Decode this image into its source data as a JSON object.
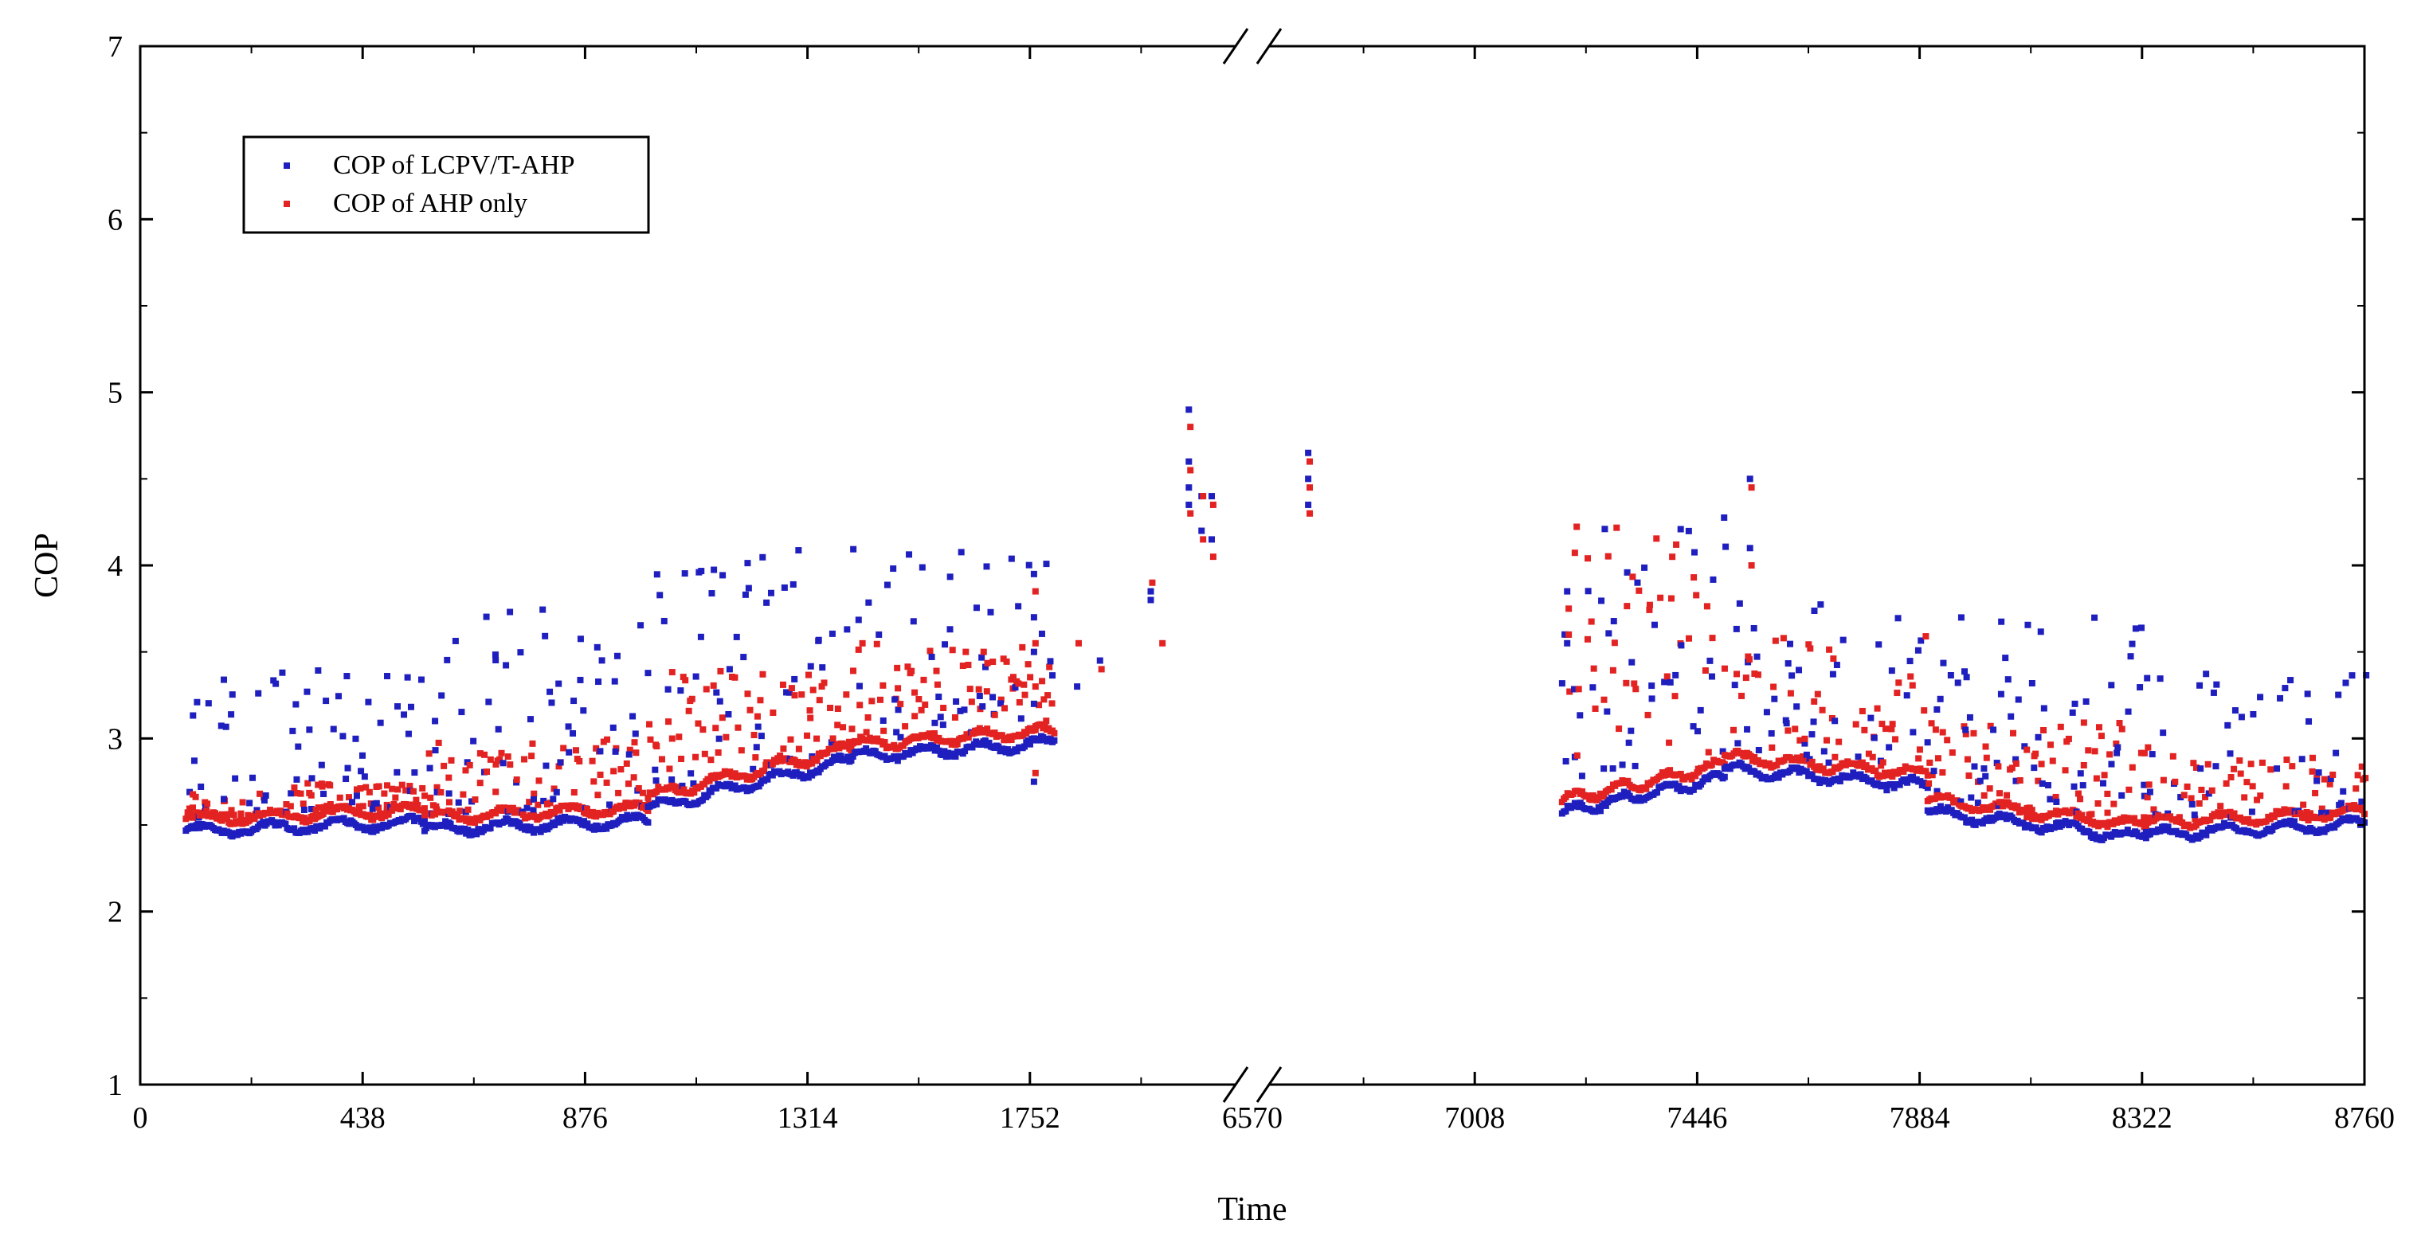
{
  "chart_data": {
    "type": "scatter",
    "title": "",
    "xlabel": "Time",
    "ylabel": "COP",
    "ylim": [
      1,
      7
    ],
    "y_ticks": [
      "1",
      "2",
      "3",
      "4",
      "5",
      "6",
      "7"
    ],
    "x_tick_labels": [
      "0",
      "438",
      "876",
      "1314",
      "1752",
      "6570",
      "7008",
      "7446",
      "7884",
      "8322",
      "8760"
    ],
    "x_axis_break": {
      "from": 2190,
      "to": 6570
    },
    "x_domain": [
      0,
      8760
    ],
    "legend": {
      "position": "top-left",
      "entries": [
        "COP of LCPV/T-AHP",
        "COP of AHP only"
      ]
    },
    "series": [
      {
        "name": "COP of LCPV/T-AHP",
        "color": "#1f1fbf"
      },
      {
        "name": "COP of AHP only",
        "color": "#e32222"
      }
    ],
    "segments": [
      {
        "x_start": 90,
        "x_end": 560,
        "base": 2.49,
        "base_end": 2.54,
        "lcpv_high": 3.4,
        "ahp_high": 2.75,
        "density": 140
      },
      {
        "x_start": 560,
        "x_end": 1000,
        "base": 2.5,
        "base_end": 2.55,
        "lcpv_high": 3.8,
        "ahp_high": 3.0,
        "density": 130
      },
      {
        "x_start": 1000,
        "x_end": 1400,
        "base": 2.62,
        "base_end": 2.9,
        "lcpv_high": 4.1,
        "ahp_high": 3.4,
        "density": 120
      },
      {
        "x_start": 1400,
        "x_end": 1800,
        "base": 2.92,
        "base_end": 3.0,
        "lcpv_high": 4.1,
        "ahp_high": 3.55,
        "density": 110
      },
      {
        "x_start": 7180,
        "x_end": 7500,
        "base": 2.6,
        "base_end": 2.8,
        "lcpv_high": 4.3,
        "ahp_high": 4.3,
        "density": 90
      },
      {
        "x_start": 7500,
        "x_end": 7900,
        "base": 2.85,
        "base_end": 2.75,
        "lcpv_high": 3.8,
        "ahp_high": 3.6,
        "density": 110
      },
      {
        "x_start": 7900,
        "x_end": 8330,
        "base": 2.6,
        "base_end": 2.45,
        "lcpv_high": 3.7,
        "ahp_high": 3.1,
        "density": 120
      },
      {
        "x_start": 8330,
        "x_end": 8760,
        "base": 2.47,
        "base_end": 2.53,
        "lcpv_high": 3.4,
        "ahp_high": 2.9,
        "density": 110
      }
    ],
    "clusters": [
      {
        "x": 1760,
        "lcpv": [
          3.95,
          3.7,
          3.5,
          3.2,
          3.0,
          2.75
        ],
        "ahp": [
          3.85,
          3.55,
          3.3,
          3.05,
          2.8
        ]
      },
      {
        "x": 1845,
        "lcpv": [
          3.3
        ],
        "ahp": [
          3.55
        ]
      },
      {
        "x": 1890,
        "lcpv": [
          3.45
        ],
        "ahp": [
          3.4
        ]
      },
      {
        "x": 1990,
        "lcpv": [
          3.85,
          3.8
        ],
        "ahp": [
          3.9
        ]
      },
      {
        "x": 2010,
        "lcpv": [],
        "ahp": [
          3.55
        ]
      },
      {
        "x": 2065,
        "lcpv": [
          4.9,
          4.6,
          4.45,
          4.35
        ],
        "ahp": [
          4.8,
          4.55,
          4.3
        ]
      },
      {
        "x": 2090,
        "lcpv": [
          4.4,
          4.2
        ],
        "ahp": [
          4.4,
          4.15
        ]
      },
      {
        "x": 2110,
        "lcpv": [
          4.4,
          4.15
        ],
        "ahp": [
          4.35,
          4.05
        ]
      },
      {
        "x": 6680,
        "lcpv": [
          4.65,
          4.5,
          4.35
        ],
        "ahp": [
          4.6,
          4.45,
          4.3
        ]
      },
      {
        "x": 7190,
        "lcpv": [
          3.85,
          3.6,
          3.55
        ],
        "ahp": [
          3.75,
          3.6
        ]
      },
      {
        "x": 7550,
        "lcpv": [
          4.5,
          4.1
        ],
        "ahp": [
          4.45,
          4.0
        ]
      }
    ]
  }
}
